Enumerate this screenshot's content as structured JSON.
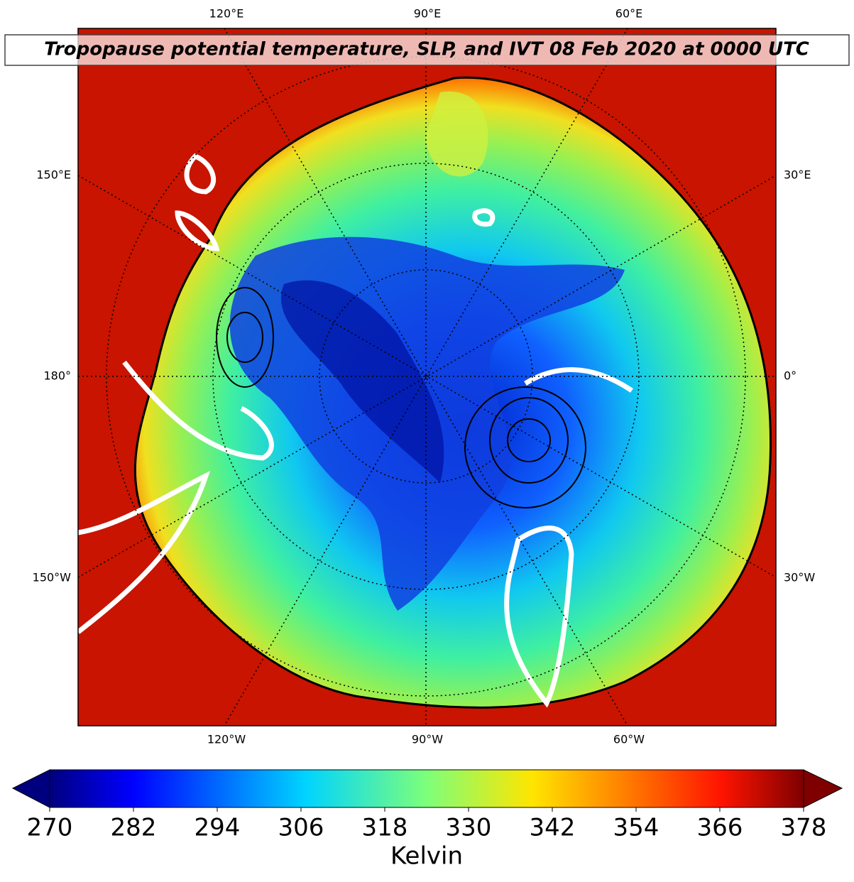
{
  "title": "Tropopause potential temperature, SLP, and IVT 08 Feb 2020 at 0000 UTC",
  "graticule_labels": {
    "top": [
      "120°E",
      "90°E",
      "60°E"
    ],
    "bottom": [
      "120°W",
      "90°W",
      "60°W"
    ],
    "left": [
      "150°E",
      "180°",
      "150°W"
    ],
    "right": [
      "30°E",
      "0°",
      "30°W"
    ]
  },
  "colorbar": {
    "lim": [
      270,
      378
    ],
    "ticks": [
      270,
      282,
      294,
      306,
      318,
      330,
      342,
      354,
      366,
      378
    ],
    "label": "Kelvin"
  }
}
